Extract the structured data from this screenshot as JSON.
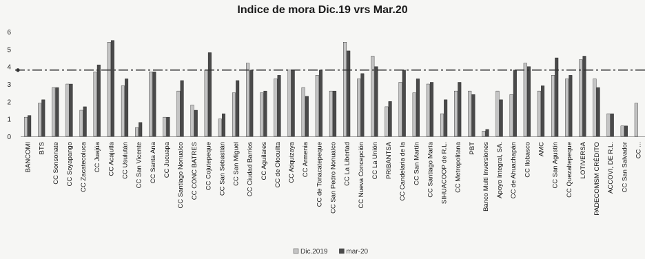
{
  "chart_data": {
    "type": "bar",
    "title": "Indice de mora Dic.19 vrs Mar.20",
    "xlabel": "",
    "ylabel": "",
    "ylim": [
      0,
      6
    ],
    "yticks": [
      0,
      1,
      2,
      3,
      4,
      5,
      6
    ],
    "reference_line": 3.8,
    "grid": false,
    "legend_position": "bottom",
    "colors": {
      "Dic.2019": "#c4c4c4",
      "mar-20": "#4a4a4a",
      "reference": "#333333"
    },
    "categories": [
      "BANCOMI",
      "BTS",
      "CC Sonsonate",
      "CC Soyapango",
      "CC Zacatecoluca",
      "CC Juajúa",
      "CC Acajutla",
      "CC Usulután",
      "CC San Vicente",
      "CC Santa Ana",
      "CC Jucuapa",
      "CC Santiago Nonualco",
      "CC CONC BATRES",
      "CC Cojutepeque",
      "CC San Sebastián",
      "CC San Miguel",
      "CC Ciudad Barrios",
      "CC Aguilares",
      "CC de Olocuilta",
      "CC Atiquizaya",
      "CC Armenia",
      "CC de Tonacatepeque",
      "CC San Pedro Nonualco",
      "CC La Libertad",
      "CC Nueva Concepción",
      "CC La Unión",
      "PRIBANTSA",
      "CC Candelaria de la",
      "CC San Martín",
      "CC Santiago María",
      "SIHUACOOP de R.L.",
      "CC Metropolitana",
      "PBT",
      "Banco Multi Inversiones",
      "Apoyo Integral, SA.",
      "CC de Ahuachapán",
      "CC Ilobasco",
      "AMC",
      "CC San Agustín",
      "CC Quezaltepeque",
      "LOTIVERSA",
      "PADECOMSM CRÉDITO",
      "ACCOVI, DE R.L.",
      "CC San Salvador",
      "CC ..."
    ],
    "series": [
      {
        "name": "Dic.2019",
        "values": [
          1.1,
          1.9,
          2.8,
          3.0,
          1.5,
          3.7,
          5.4,
          2.9,
          0.5,
          3.7,
          1.1,
          2.6,
          1.8,
          3.8,
          1.0,
          2.5,
          4.2,
          2.5,
          3.3,
          3.8,
          2.8,
          3.5,
          2.6,
          5.4,
          3.3,
          4.6,
          1.7,
          3.1,
          2.5,
          3.0,
          1.3,
          2.6,
          2.6,
          0.3,
          2.6,
          2.4,
          4.2,
          2.6,
          3.5,
          3.3,
          4.4,
          3.3,
          1.3,
          0.6,
          1.9
        ]
      },
      {
        "name": "mar-20",
        "values": [
          1.2,
          2.1,
          2.8,
          3.0,
          1.7,
          4.1,
          5.5,
          3.3,
          0.8,
          3.7,
          1.1,
          3.2,
          1.5,
          4.8,
          1.3,
          3.2,
          3.8,
          2.6,
          3.5,
          3.8,
          2.3,
          3.8,
          2.6,
          4.9,
          3.6,
          4.0,
          2.0,
          3.8,
          3.3,
          3.1,
          2.1,
          3.1,
          2.4,
          0.4,
          2.1,
          3.8,
          4.0,
          2.9,
          4.5,
          3.5,
          4.6,
          2.8,
          1.3,
          0.6,
          0.0
        ]
      }
    ],
    "legend": [
      {
        "label": "Dic.2019",
        "color": "#c4c4c4"
      },
      {
        "label": "mar-20",
        "color": "#4a4a4a"
      }
    ]
  }
}
